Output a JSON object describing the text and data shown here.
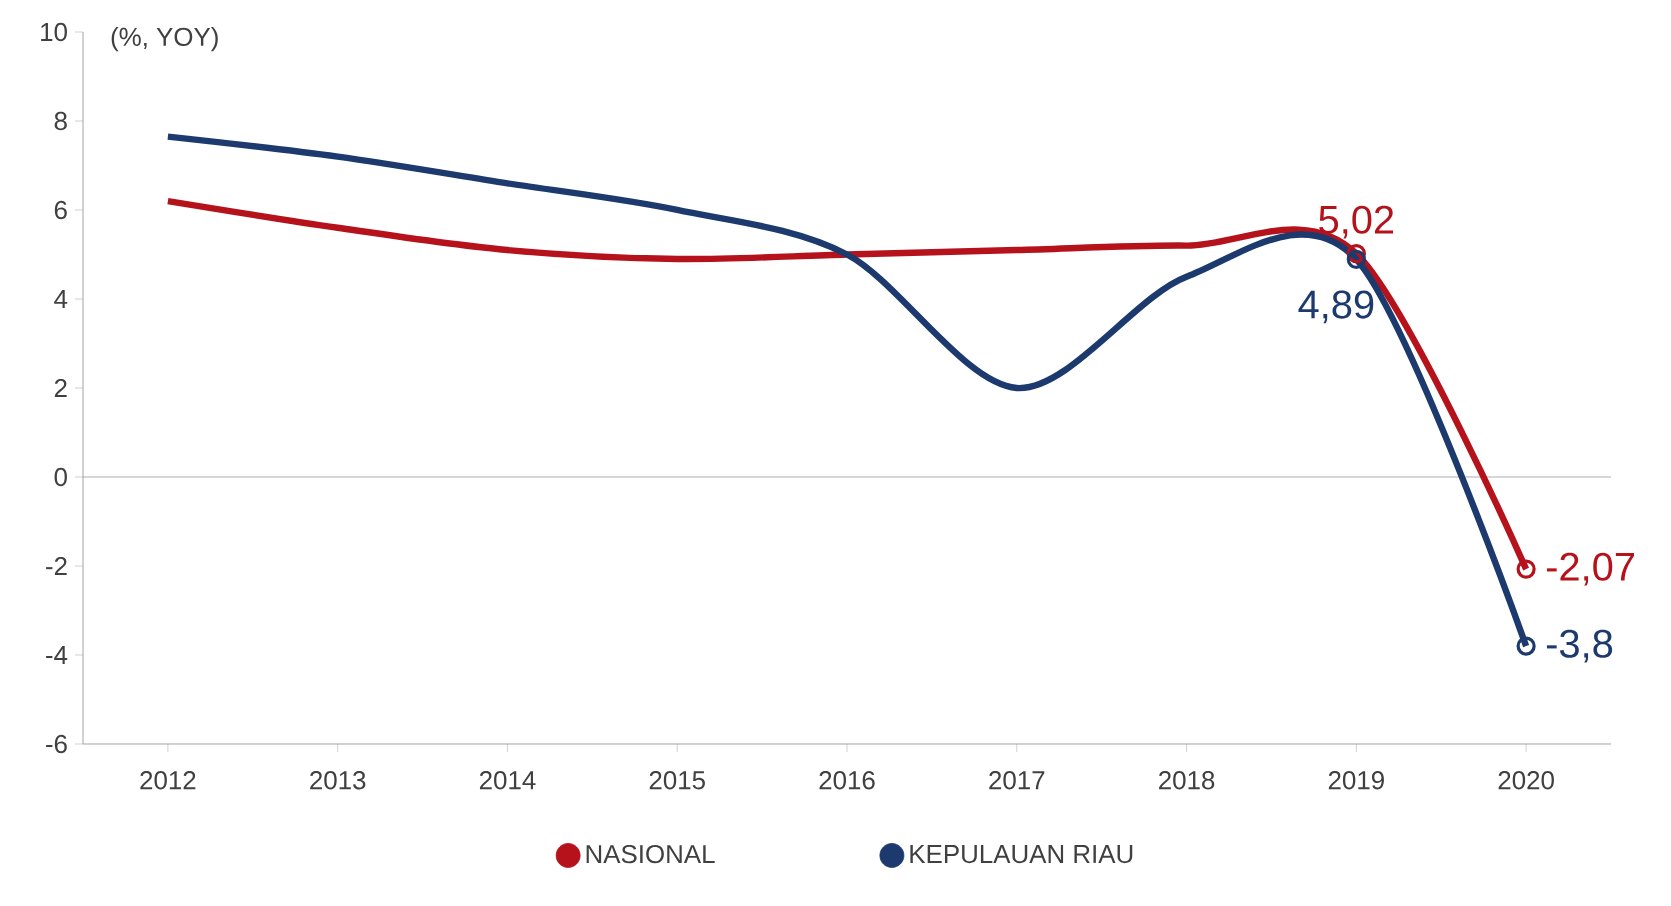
{
  "chart_data": {
    "type": "line",
    "ylabel": "(%, YOY)",
    "categories": [
      "2012",
      "2013",
      "2014",
      "2015",
      "2016",
      "2017",
      "2018",
      "2019",
      "2020"
    ],
    "series": [
      {
        "name": "NASIONAL",
        "color": "#b5121b",
        "values": [
          6.2,
          5.6,
          5.1,
          4.9,
          5.0,
          5.1,
          5.2,
          5.02,
          -2.07
        ],
        "value_labels": [
          null,
          null,
          null,
          null,
          null,
          null,
          null,
          "5,02",
          "-2,07"
        ]
      },
      {
        "name": "KEPULAUAN RIAU",
        "color": "#1c3a6e",
        "values": [
          7.65,
          7.2,
          6.6,
          6.0,
          5.0,
          2.0,
          4.5,
          4.89,
          -3.8
        ],
        "value_labels": [
          null,
          null,
          null,
          null,
          null,
          null,
          null,
          "4,89",
          "-3,8"
        ]
      }
    ],
    "ylim": [
      -6,
      10
    ],
    "yticks": [
      -6,
      -4,
      -2,
      0,
      2,
      4,
      6,
      8,
      10
    ],
    "ref_lines": [
      {
        "axis": "y",
        "value": 0,
        "color": "#999999"
      }
    ],
    "grid": false,
    "legend": "bottom",
    "line_style": "solid"
  }
}
